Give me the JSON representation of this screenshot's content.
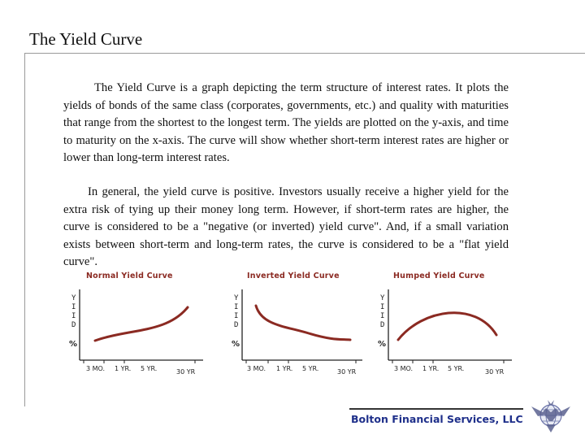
{
  "slide": {
    "title": "The Yield Curve",
    "paragraph1": "The Yield Curve is a graph depicting the term structure of interest rates. It plots the yields of bonds of the same class (corporates, governments, etc.) and quality with maturities that range from the shortest to the longest term. The yields are plotted on the y-axis, and time to maturity on the x-axis. The curve will show whether short-term interest rates are higher or lower than long-term interest rates.",
    "paragraph2": "In general, the yield curve is positive. Investors usually receive a higher yield for the extra risk of tying up their money long term. However, if short-term rates are higher, the curve is considered to be a \"negative (or inverted) yield curve\". And, if a small variation exists between short-term and long-term rates, the curve is considered to be a \"flat yield curve\"."
  },
  "charts": [
    {
      "title": "Normal Yield Curve",
      "shape": "normal"
    },
    {
      "title": "Inverted Yield Curve",
      "shape": "inverted"
    },
    {
      "title": "Humped Yield Curve",
      "shape": "humped"
    }
  ],
  "axis": {
    "y_letters": [
      "Y",
      "I",
      "I",
      "D"
    ],
    "percent": "%",
    "x_labels": [
      "3 MO.",
      "1 YR.",
      "5 YR.",
      "30 YR"
    ]
  },
  "footer": {
    "company": "Bolton Financial Services, LLC"
  },
  "colors": {
    "curve": "#8b2a22",
    "title_accent": "#8b2a22",
    "footer_text": "#1e2f8a"
  },
  "icons": {
    "logo": "globe-eagle-logo"
  }
}
